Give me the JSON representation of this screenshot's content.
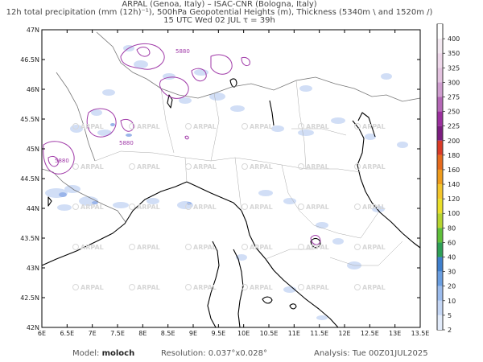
{
  "header": {
    "line1": "ARPAL (Genoa, Italy)  –  ISAC-CNR (Bologna, Italy)",
    "line2": "12h total precipitation (mm (12h)⁻¹), 500hPa Geopotential Heights (m), Thickness (5340m \\ and 1520m /)",
    "line3": "15 UTC Wed 02 JUL    τ = 39h"
  },
  "map": {
    "lat_labels": [
      "47N",
      "46.5N",
      "46N",
      "45.5N",
      "45N",
      "44.5N",
      "44N",
      "43.5N",
      "43N",
      "42.5N",
      "42N"
    ],
    "lon_labels": [
      "6E",
      "6.5E",
      "7E",
      "7.5E",
      "8E",
      "8.5E",
      "9E",
      "9.5E",
      "10E",
      "10.5E",
      "11E",
      "11.5E",
      "12E",
      "12.5E",
      "13E",
      "13.5E"
    ],
    "lat_values": [
      47,
      46.5,
      46,
      45.5,
      45,
      44.5,
      44,
      43.5,
      43,
      42.5,
      42
    ],
    "lon_values": [
      6,
      6.5,
      7,
      7.5,
      8,
      8.5,
      9,
      9.5,
      10,
      10.5,
      11,
      11.5,
      12,
      12.5,
      13,
      13.5
    ],
    "contour_label": "5880",
    "watermark": "ARPAL"
  },
  "colorbar": {
    "labels": [
      "400",
      "350",
      "325",
      "300",
      "275",
      "250",
      "225",
      "200",
      "180",
      "160",
      "140",
      "120",
      "100",
      "80",
      "60",
      "40",
      "30",
      "20",
      "10",
      "5",
      "2"
    ],
    "colors": [
      "#ffffff",
      "#f3e9f1",
      "#eed7ea",
      "#e3c2df",
      "#cf9dcf",
      "#b467b6",
      "#9b2f9e",
      "#7b1d7f",
      "#d93a27",
      "#e56a1d",
      "#ee9b1c",
      "#f3c52b",
      "#eadf2a",
      "#b6d42f",
      "#5fbf3a",
      "#2f9f57",
      "#3f7fcc",
      "#6a9ee0",
      "#9bbbec",
      "#c4d6f4",
      "#e2ebfa"
    ]
  },
  "footer": {
    "model_label": "Model:",
    "model_value": "moloch",
    "resolution": "Resolution: 0.037°x0.028°",
    "analysis": "Analysis: Tue 00Z01JUL2025"
  }
}
